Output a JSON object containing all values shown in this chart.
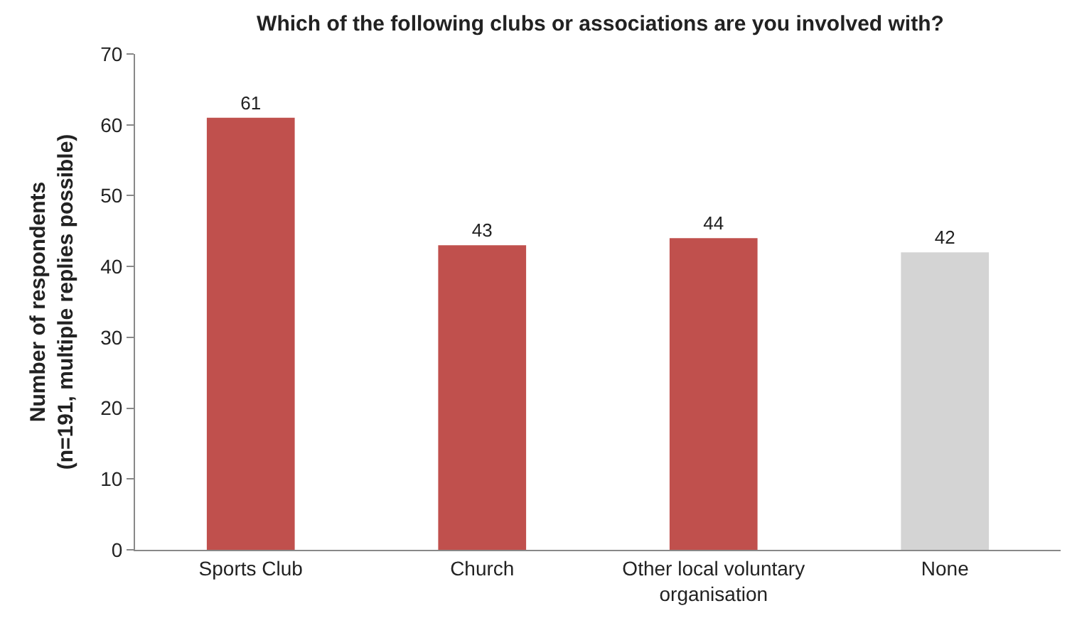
{
  "chart_data": {
    "type": "bar",
    "title": "Which of the following clubs or associations are you involved with?",
    "ylabel": "Number of respondents\n(n=191, multiple replies possible)",
    "categories": [
      "Sports Club",
      "Church",
      "Other local voluntary organisation",
      "None"
    ],
    "values": [
      61,
      43,
      44,
      42
    ],
    "colors": [
      "#c0504d",
      "#c0504d",
      "#c0504d",
      "#d4d4d4"
    ],
    "ylim": [
      0,
      70
    ],
    "yticks": [
      0,
      10,
      20,
      30,
      40,
      50,
      60,
      70
    ],
    "data_labels": true
  }
}
